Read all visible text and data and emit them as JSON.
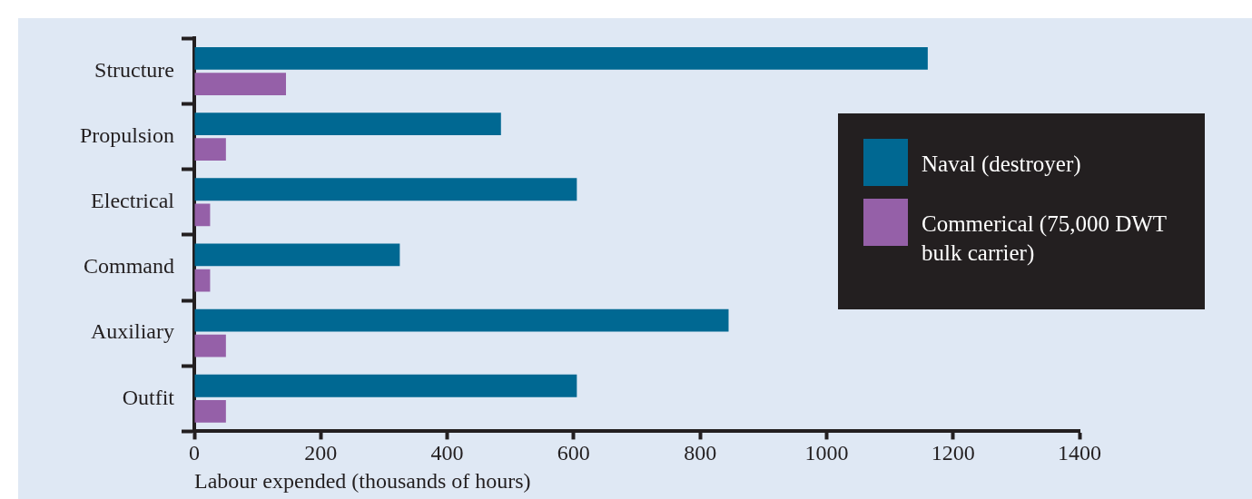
{
  "chart_data": {
    "type": "bar",
    "orientation": "horizontal",
    "categories": [
      "Structure",
      "Propulsion",
      "Electrical",
      "Command",
      "Auxiliary",
      "Outfit"
    ],
    "series": [
      {
        "name": "Naval (destroyer)",
        "color": "#006892",
        "values": [
          1160,
          485,
          605,
          325,
          845,
          605
        ]
      },
      {
        "name": "Commerical (75,000 DWT bulk carrier)",
        "color": "#9560a8",
        "values": [
          145,
          50,
          25,
          25,
          50,
          50
        ]
      }
    ],
    "xlabel": "Labour expended (thousands of hours)",
    "xlim": [
      0,
      1400
    ],
    "xticks": [
      0,
      200,
      400,
      600,
      800,
      1000,
      1200,
      1400
    ],
    "grid": false,
    "legend": "right"
  }
}
